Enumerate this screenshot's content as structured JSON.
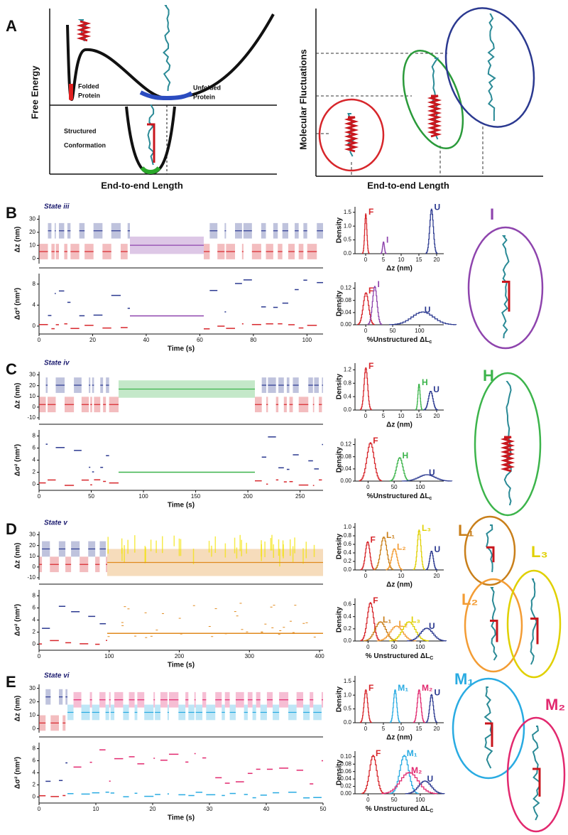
{
  "panel_a": {
    "label": "A",
    "energy": {
      "y_label": "Free Energy",
      "x_label": "End-to-end Length",
      "folded": [
        "Folded",
        "Protein"
      ],
      "unfolded": [
        "Unfolded",
        "Protein"
      ],
      "structured": [
        "Structured",
        "Conformation"
      ]
    },
    "fluctuations": {
      "y_label": "Molecular Fluctuations",
      "x_label": "End-to-end Length"
    }
  },
  "panels": [
    {
      "label": "B",
      "state": "State iii",
      "trace": {
        "y_label": "Δz (nm)",
        "ylim": [
          -4,
          33
        ],
        "yticks": [
          0,
          10,
          20,
          30
        ]
      },
      "variance": {
        "y_label": "Δσ² (nm²)",
        "ylim": [
          -1.5,
          10
        ],
        "yticks": [
          0,
          4,
          8
        ]
      },
      "time": {
        "x_label": "Time (s)",
        "xlim": [
          0,
          106
        ],
        "xticks": [
          0,
          20,
          40,
          60,
          80,
          100
        ]
      },
      "hist_z": {
        "y_label": "Density",
        "x_label": "Δz (nm)",
        "xlim": [
          -3,
          22
        ],
        "xticks": [
          0,
          5,
          10,
          15,
          20
        ],
        "ylim": [
          0,
          1.7
        ],
        "yticks": [
          {
            "value": 0,
            "label": "0.0"
          },
          0.5,
          {
            "value": 1,
            "label": "1.0"
          },
          1.5
        ],
        "peaks": [
          {
            "text": "F",
            "color": "#d7262b"
          },
          {
            "text": "I",
            "color": "#8e44ad"
          },
          {
            "text": "U",
            "color": "#2b3990"
          }
        ]
      },
      "hist_l": {
        "y_label": "Density",
        "x_label": {
          "text": "%Unstructured ΔL",
          "sub": "c"
        },
        "xlim": [
          -20,
          145
        ],
        "xticks": [
          0,
          50,
          100
        ],
        "ylim": [
          0,
          0.14
        ],
        "yticks": [
          {
            "value": 0,
            "label": "0.00"
          },
          0.04,
          0.08,
          0.12
        ],
        "peaks": [
          {
            "text": "F",
            "color": "#d7262b"
          },
          {
            "text": "I",
            "color": "#8e44ad"
          },
          {
            "text": "U",
            "color": "#2b3990"
          }
        ]
      },
      "structures": [
        {
          "text": "I",
          "color": "#8e44ad"
        }
      ]
    },
    {
      "label": "C",
      "state": "State iv",
      "trace": {
        "y_label": "Δz (nm)",
        "ylim": [
          -12,
          33
        ],
        "yticks": [
          -10,
          0,
          10,
          20,
          30
        ]
      },
      "variance": {
        "y_label": "Δσ² (nm²)",
        "ylim": [
          -1,
          9
        ],
        "yticks": [
          0,
          2,
          4,
          6,
          8
        ]
      },
      "time": {
        "x_label": "Time (s)",
        "xlim": [
          0,
          272
        ],
        "xticks": [
          0,
          50,
          100,
          150,
          200,
          250
        ]
      },
      "hist_z": {
        "y_label": "Density",
        "x_label": "Δz (nm)",
        "xlim": [
          -3,
          22
        ],
        "xticks": [
          0,
          5,
          10,
          15,
          20
        ],
        "ylim": [
          0,
          1.4
        ],
        "yticks": [
          {
            "value": 0,
            "label": "0.0"
          },
          0.4,
          0.8,
          1.2
        ],
        "peaks": [
          {
            "text": "F",
            "color": "#d7262b"
          },
          {
            "text": "H",
            "color": "#3cb44b"
          },
          {
            "text": "U",
            "color": "#2b3990"
          }
        ]
      },
      "hist_l": {
        "y_label": "Density",
        "x_label": {
          "text": "%Unstructured ΔL",
          "sub": "c"
        },
        "xlim": [
          -25,
          145
        ],
        "xticks": [
          0,
          50,
          100
        ],
        "ylim": [
          0,
          0.14
        ],
        "yticks": [
          {
            "value": 0,
            "label": "0.00"
          },
          0.04,
          0.08,
          0.12
        ],
        "peaks": [
          {
            "text": "F",
            "color": "#d7262b"
          },
          {
            "text": "H",
            "color": "#3cb44b"
          },
          {
            "text": "U",
            "color": "#2b3990"
          }
        ]
      },
      "structures": [
        {
          "text": "H",
          "color": "#3cb44b"
        }
      ]
    },
    {
      "label": "D",
      "state": "State v",
      "trace": {
        "y_label": "Δz (nm)",
        "ylim": [
          -12,
          33
        ],
        "yticks": [
          -10,
          0,
          10,
          20,
          30
        ]
      },
      "variance": {
        "y_label": "Δσ² (nm²)",
        "ylim": [
          -1,
          9
        ],
        "yticks": [
          0,
          2,
          4,
          6,
          8
        ]
      },
      "time": {
        "x_label": "Time (s)",
        "xlim": [
          0,
          405
        ],
        "xticks": [
          0,
          100,
          200,
          300,
          400
        ]
      },
      "hist_z": {
        "y_label": "Density",
        "x_label": "Δz (nm)",
        "xlim": [
          -3,
          22
        ],
        "xticks": [
          0,
          10,
          20
        ],
        "ylim": [
          0,
          1.1
        ],
        "yticks": [
          {
            "value": 0,
            "label": "0.0"
          },
          0.2,
          0.4,
          0.6,
          0.8,
          {
            "value": 1,
            "label": "1.0"
          }
        ],
        "peaks": [
          {
            "text": "F",
            "color": "#d7262b"
          },
          {
            "text": "L₁",
            "color": "#c97f1a"
          },
          {
            "text": "L₂",
            "color": "#f39c34"
          },
          {
            "text": "L₃",
            "color": "#e0d000"
          },
          {
            "text": "U",
            "color": "#2b3990"
          }
        ]
      },
      "hist_l": {
        "y_label": "Density",
        "x_label": {
          "text": "% Unstructured ΔL",
          "sub": "C"
        },
        "xlim": [
          -25,
          145
        ],
        "xticks": [
          0,
          50,
          100
        ],
        "ylim": [
          0,
          0.7
        ],
        "yticks": [
          {
            "value": 0,
            "label": "0.0"
          },
          0.2,
          0.4,
          0.6
        ],
        "peaks": [
          {
            "text": "F",
            "color": "#d7262b"
          },
          {
            "text": "L₁",
            "color": "#c97f1a"
          },
          {
            "text": "L₂",
            "color": "#f39c34"
          },
          {
            "text": "L₃",
            "color": "#e0d000"
          },
          {
            "text": "U",
            "color": "#2b3990"
          }
        ]
      },
      "structures": [
        {
          "text": "L₁",
          "color": "#c97f1a"
        },
        {
          "text": "L₂",
          "color": "#f39c34"
        },
        {
          "text": "L₃",
          "color": "#e0d000"
        }
      ]
    },
    {
      "label": "E",
      "state": "State vi",
      "trace": {
        "y_label": "Δz (nm)",
        "ylim": [
          -3,
          33
        ],
        "yticks": [
          0,
          10,
          20,
          30
        ]
      },
      "variance": {
        "y_label": "Δσ² (nm²)",
        "ylim": [
          -1,
          9
        ],
        "yticks": [
          0,
          2,
          4,
          6,
          8
        ]
      },
      "time": {
        "x_label": "Time (s)",
        "xlim": [
          0,
          50
        ],
        "xticks": [
          0,
          10,
          20,
          30,
          40,
          50
        ]
      },
      "hist_z": {
        "y_label": "Density",
        "x_label": "Δz (nm)",
        "xlim": [
          -3,
          22
        ],
        "xticks": [
          0,
          5,
          10,
          15,
          20
        ],
        "ylim": [
          0,
          1.7
        ],
        "yticks": [
          {
            "value": 0,
            "label": "0.0"
          },
          0.5,
          {
            "value": 1,
            "label": "1.0"
          },
          1.5
        ],
        "peaks": [
          {
            "text": "F",
            "color": "#d7262b"
          },
          {
            "text": "M₁",
            "color": "#29abe2"
          },
          {
            "text": "M₂",
            "color": "#e2296f"
          },
          {
            "text": "U",
            "color": "#2b3990"
          }
        ]
      },
      "hist_l": {
        "y_label": "Density",
        "x_label": {
          "text": "% Unstructured ΔL",
          "sub": "C"
        },
        "xlim": [
          -25,
          145
        ],
        "xticks": [
          0,
          50,
          100
        ],
        "ylim": [
          0,
          0.115
        ],
        "yticks": [
          {
            "value": 0,
            "label": "0.00"
          },
          0.02,
          0.04,
          0.06,
          0.08,
          {
            "value": 0.1,
            "label": "0.10"
          }
        ],
        "peaks": [
          {
            "text": "F",
            "color": "#d7262b"
          },
          {
            "text": "M₁",
            "color": "#29abe2"
          },
          {
            "text": "M₂",
            "color": "#e2296f"
          },
          {
            "text": "U",
            "color": "#2b3990"
          }
        ]
      },
      "structures": [
        {
          "text": "M₁",
          "color": "#29abe2"
        },
        {
          "text": "M₂",
          "color": "#e2296f"
        }
      ]
    }
  ]
}
